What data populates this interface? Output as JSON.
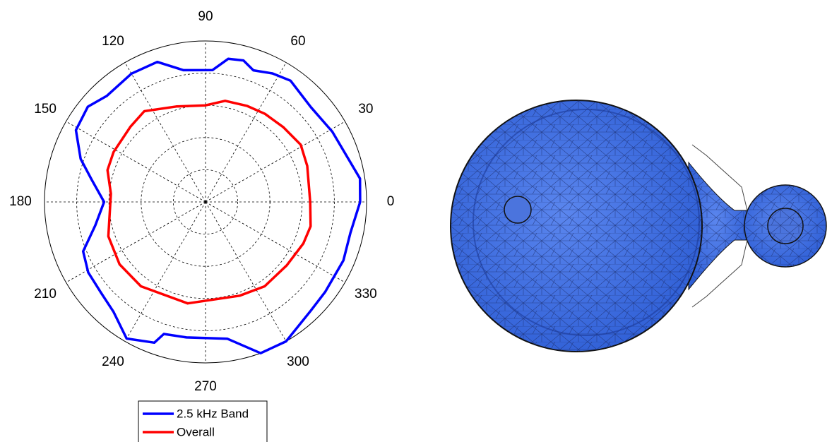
{
  "chart_data": {
    "type": "polar",
    "thetaticks": [
      0,
      30,
      60,
      90,
      120,
      150,
      180,
      210,
      240,
      270,
      300,
      330
    ],
    "rlim": [
      0,
      5
    ],
    "rticks": [
      1,
      2,
      3,
      4,
      5
    ],
    "grid": true,
    "series": [
      {
        "name": "2.5 kHz Band",
        "color": "#0000ff",
        "theta": [
          0,
          8.6,
          29,
          42,
          55,
          62.5,
          70,
          75,
          81,
          87,
          99.5,
          109,
          120,
          133,
          141,
          151,
          161,
          169,
          180,
          192,
          202,
          211,
          221,
          230,
          240,
          250,
          252.5,
          262,
          279,
          290,
          300,
          314,
          323,
          337,
          348
        ],
        "values": [
          4.8,
          4.85,
          4.5,
          4.4,
          4.6,
          4.5,
          4.35,
          4.55,
          4.5,
          4.1,
          4.15,
          4.6,
          4.6,
          4.5,
          4.7,
          4.6,
          4.1,
          3.6,
          3.15,
          3.5,
          4.1,
          4.25,
          4.3,
          4.45,
          4.9,
          4.65,
          4.3,
          4.25,
          4.3,
          5.0,
          5.0,
          4.7,
          4.65,
          4.65,
          4.6
        ]
      },
      {
        "name": "Overall",
        "color": "#ff0000",
        "theta": [
          0,
          19.5,
          31,
          44,
          56,
          66.5,
          79,
          90,
          107,
          124,
          135,
          151.5,
          162,
          175,
          199.5,
          216,
          232.6,
          260,
          290,
          305,
          322,
          337,
          347
        ],
        "values": [
          3.25,
          3.35,
          3.45,
          3.35,
          3.3,
          3.25,
          3.2,
          3.0,
          3.1,
          3.4,
          3.3,
          3.25,
          3.2,
          2.95,
          3.2,
          3.3,
          3.3,
          3.2,
          3.1,
          3.2,
          3.2,
          3.3,
          3.35
        ]
      }
    ]
  }
}
